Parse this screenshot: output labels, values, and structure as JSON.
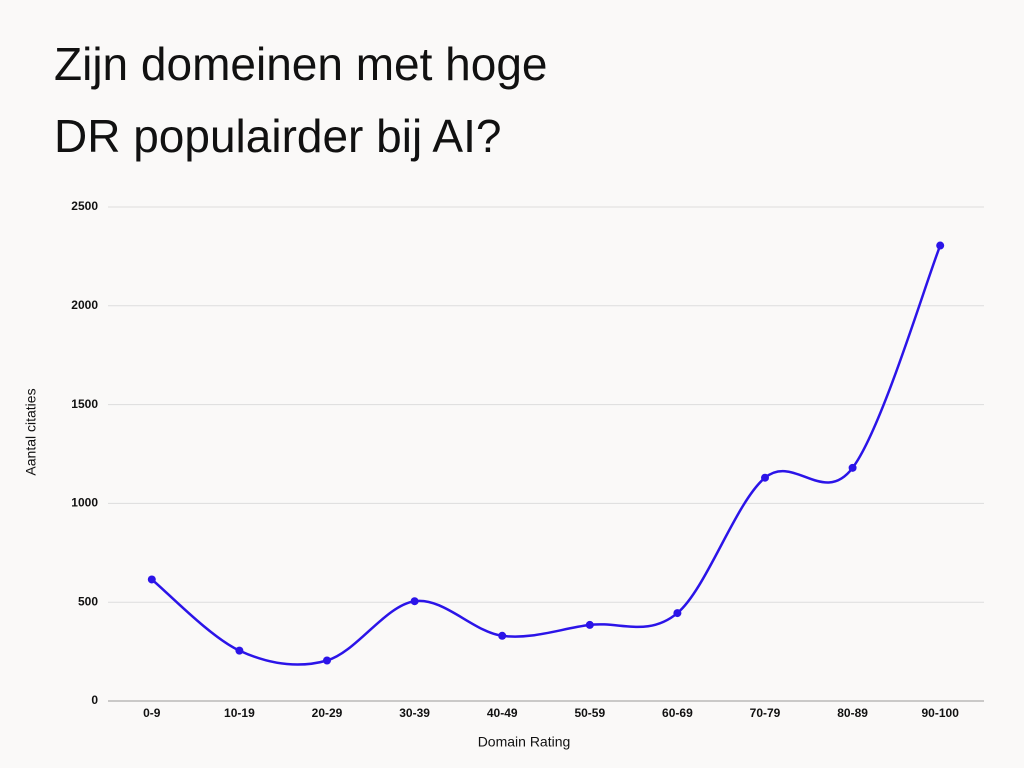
{
  "chart_data": {
    "type": "line",
    "title": [
      "Zijn domeinen met hoge",
      "DR populairder bij AI?"
    ],
    "x_label": "Domain Rating",
    "y_label": "Aantal citaties",
    "categories": [
      "0-9",
      "10-19",
      "20-29",
      "30-39",
      "40-49",
      "50-59",
      "60-69",
      "70-79",
      "80-89",
      "90-100"
    ],
    "series": [
      {
        "name": "Aantal citaties",
        "color": "#2b14e8",
        "values": [
          615,
          255,
          205,
          505,
          330,
          385,
          445,
          1130,
          1180,
          2305
        ]
      }
    ],
    "ylim": [
      0,
      2500
    ],
    "yticks": [
      0,
      500,
      1000,
      1500,
      2000,
      2500
    ],
    "grid": true,
    "smooth": true
  }
}
